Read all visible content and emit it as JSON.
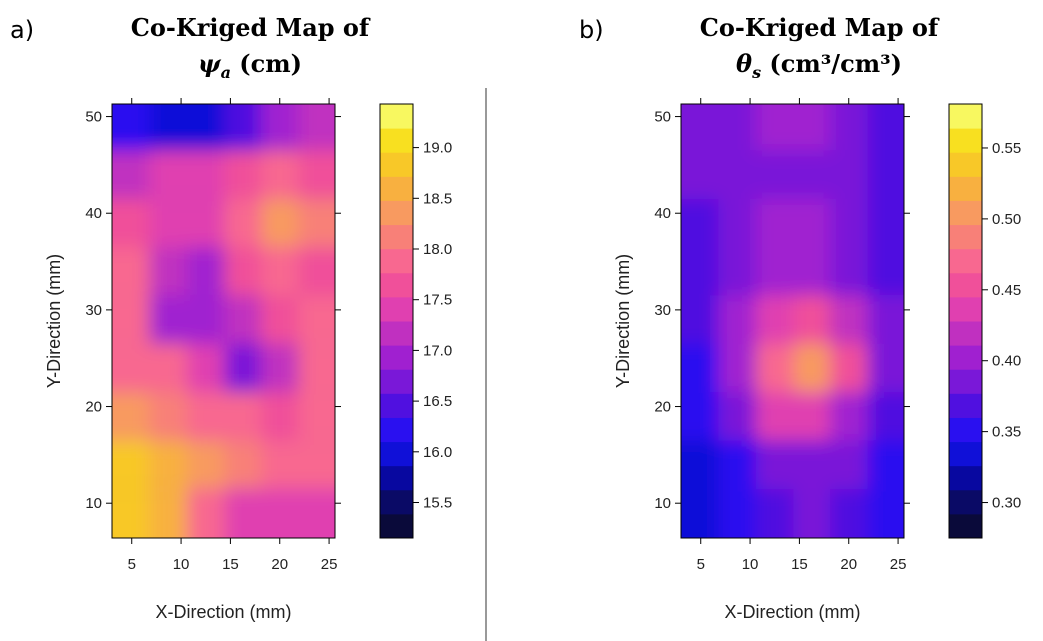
{
  "chart_data": [
    {
      "type": "heatmap",
      "panel_label": "a)",
      "title": "Co-Kriged Map of",
      "title_symbol": "ψ",
      "title_subscript": "a",
      "title_unit": " (cm)",
      "xlabel": "X-Direction (mm)",
      "ylabel": "Y-Direction (mm)",
      "x": [
        4.9,
        8.7,
        12.5,
        16.3,
        20.0,
        23.8
      ],
      "y": [
        49,
        44,
        39,
        34,
        29,
        24,
        19,
        14,
        9
      ],
      "values": [
        [
          16.2,
          15.9,
          16.0,
          16.4,
          16.9,
          17.1
        ],
        [
          17.2,
          17.3,
          17.3,
          17.6,
          17.8,
          17.7
        ],
        [
          17.6,
          17.5,
          17.3,
          17.9,
          18.4,
          18.2
        ],
        [
          17.9,
          17.1,
          16.9,
          17.6,
          17.9,
          17.7
        ],
        [
          17.9,
          17.0,
          16.9,
          17.2,
          17.7,
          17.9
        ],
        [
          18.0,
          17.8,
          17.4,
          16.6,
          17.1,
          17.8
        ],
        [
          18.3,
          18.2,
          18.0,
          17.8,
          17.6,
          17.8
        ],
        [
          18.8,
          18.6,
          18.3,
          18.1,
          17.9,
          17.8
        ],
        [
          18.8,
          18.5,
          17.8,
          17.3,
          17.5,
          17.4
        ]
      ],
      "xlim": [
        3,
        25.6
      ],
      "ylim": [
        6.4,
        51.3
      ],
      "xticks": [
        5,
        10,
        15,
        20,
        25
      ],
      "yticks": [
        10,
        20,
        30,
        40,
        50
      ],
      "colorbar": {
        "lim": [
          15.15,
          19.43
        ],
        "ticks": [
          {
            "value": 15.5,
            "label": "15.5"
          },
          {
            "value": 16,
            "label": "16.0"
          },
          {
            "value": 16.5,
            "label": "16.5"
          },
          {
            "value": 17,
            "label": "17.0"
          },
          {
            "value": 17.5,
            "label": "17.5"
          },
          {
            "value": 18,
            "label": "18.0"
          },
          {
            "value": 18.5,
            "label": "18.5"
          },
          {
            "value": 19,
            "label": "19.0"
          }
        ],
        "colors": [
          "#0a0a3a",
          "#0a0a66",
          "#0808a0",
          "#1010d8",
          "#2a10f0",
          "#5010e0",
          "#7a18d8",
          "#a020d0",
          "#c030c0",
          "#e040b0",
          "#f0509a",
          "#f86890",
          "#f88078",
          "#f89a60",
          "#f8b040",
          "#f8c828",
          "#f8e020",
          "#f8f860"
        ]
      }
    },
    {
      "type": "heatmap",
      "panel_label": "b)",
      "title": "Co-Kriged Map of",
      "title_symbol": "θ",
      "title_subscript": "s",
      "title_unit": " (cm³/cm³)",
      "xlabel": "X-Direction (mm)",
      "ylabel": "Y-Direction (mm)",
      "x": [
        4.9,
        8.7,
        12.5,
        16.3,
        20.0,
        23.8
      ],
      "y": [
        49,
        44,
        39,
        34,
        29,
        24,
        19,
        14,
        9
      ],
      "values": [
        [
          0.38,
          0.39,
          0.4,
          0.4,
          0.38,
          0.37
        ],
        [
          0.38,
          0.39,
          0.39,
          0.39,
          0.38,
          0.37
        ],
        [
          0.37,
          0.39,
          0.4,
          0.4,
          0.39,
          0.37
        ],
        [
          0.37,
          0.39,
          0.41,
          0.41,
          0.39,
          0.37
        ],
        [
          0.37,
          0.4,
          0.44,
          0.46,
          0.42,
          0.38
        ],
        [
          0.36,
          0.4,
          0.47,
          0.51,
          0.45,
          0.38
        ],
        [
          0.35,
          0.38,
          0.43,
          0.44,
          0.41,
          0.37
        ],
        [
          0.33,
          0.36,
          0.38,
          0.39,
          0.38,
          0.36
        ],
        [
          0.33,
          0.35,
          0.37,
          0.39,
          0.37,
          0.36
        ]
      ],
      "xlim": [
        3,
        25.6
      ],
      "ylim": [
        6.4,
        51.3
      ],
      "xticks": [
        5,
        10,
        15,
        20,
        25
      ],
      "yticks": [
        10,
        20,
        30,
        40,
        50
      ],
      "colorbar": {
        "lim": [
          0.275,
          0.581
        ],
        "ticks": [
          {
            "value": 0.3,
            "label": "0.30"
          },
          {
            "value": 0.35,
            "label": "0.35"
          },
          {
            "value": 0.4,
            "label": "0.40"
          },
          {
            "value": 0.45,
            "label": "0.45"
          },
          {
            "value": 0.5,
            "label": "0.50"
          },
          {
            "value": 0.55,
            "label": "0.55"
          }
        ],
        "colors": [
          "#0a0a3a",
          "#0a0a66",
          "#0808a0",
          "#1010d8",
          "#2a10f0",
          "#5010e0",
          "#7a18d8",
          "#a020d0",
          "#c030c0",
          "#e040b0",
          "#f0509a",
          "#f86890",
          "#f88078",
          "#f89a60",
          "#f8b040",
          "#f8c828",
          "#f8e020",
          "#f8f860"
        ]
      }
    }
  ]
}
